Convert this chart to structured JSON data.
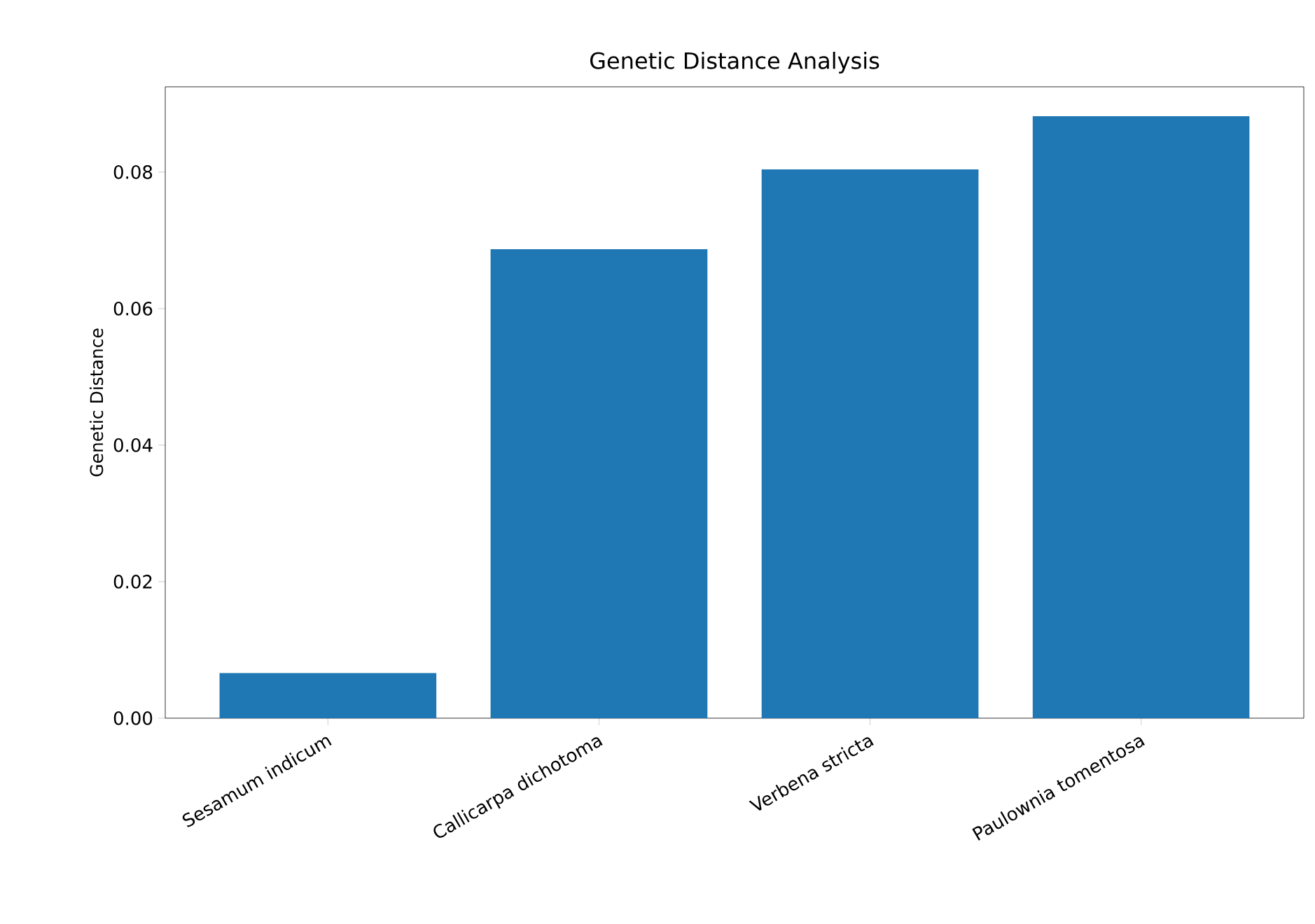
{
  "chart_data": {
    "type": "bar",
    "title": "Genetic Distance Analysis",
    "ylabel": "Genetic Distance",
    "categories": [
      "Sesamum indicum",
      "Callicarpa dichotoma",
      "Verbena stricta",
      "Paulownia tomentosa"
    ],
    "values": [
      0.0066,
      0.0687,
      0.0804,
      0.0882
    ],
    "color": "#1f77b4",
    "ylim": [
      0,
      0.0925
    ],
    "yticks": [
      {
        "value": 0,
        "label": "0.00"
      },
      {
        "value": 0.02,
        "label": "0.02"
      },
      {
        "value": 0.04,
        "label": "0.04"
      },
      {
        "value": 0.06,
        "label": "0.06"
      },
      {
        "value": 0.08,
        "label": "0.08"
      }
    ]
  }
}
